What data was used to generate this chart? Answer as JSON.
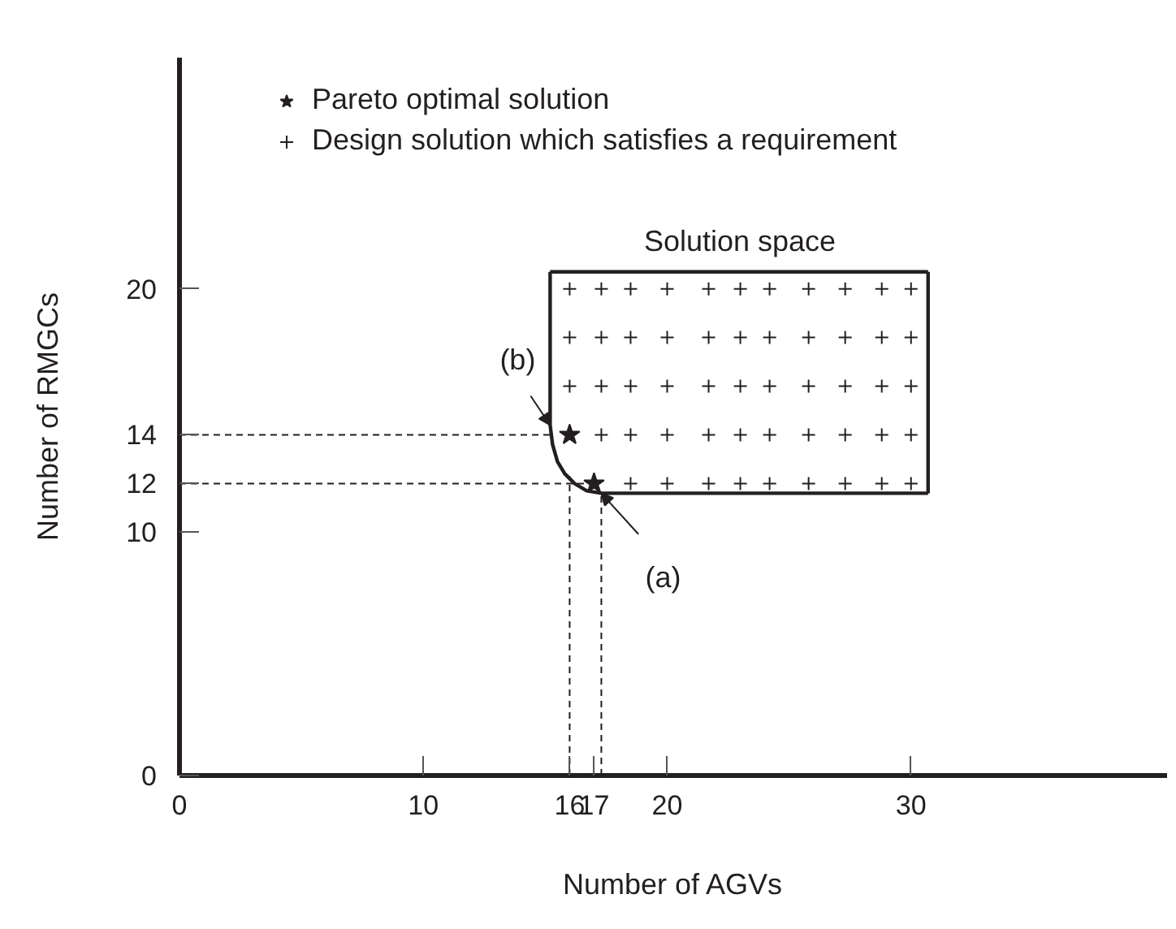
{
  "chart_data": {
    "type": "scatter",
    "xlabel": "Number of AGVs",
    "ylabel": "Number of RMGCs",
    "xlim": [
      0,
      40.5
    ],
    "ylim": [
      0,
      29.5
    ],
    "xticks": [
      0,
      10,
      16,
      17,
      20,
      30
    ],
    "yticks": [
      0,
      10,
      12,
      14,
      20
    ],
    "grid": false,
    "legend": "top left",
    "annotations": [
      "Solution space",
      {
        "text": "(a)",
        "x": 17.3,
        "y": 11.6
      },
      {
        "text": "(b)",
        "x": 15.2,
        "y": 14.4
      }
    ],
    "series": [
      {
        "name": "Pareto optimal solution",
        "marker": "star",
        "color": "#231f20",
        "x": [
          16,
          17
        ],
        "values": [
          14,
          12
        ]
      },
      {
        "name": "Design solution which satisfies a requirement",
        "marker": "cross",
        "color": "#231f20",
        "x": [
          16,
          17.3,
          18.5,
          20,
          21.7,
          23,
          24.2,
          25.8,
          27.3,
          28.8,
          30,
          16,
          17.3,
          18.5,
          20,
          21.7,
          23,
          24.2,
          25.8,
          27.3,
          28.8,
          30,
          16,
          17.3,
          18.5,
          20,
          21.7,
          23,
          24.2,
          25.8,
          27.3,
          28.8,
          30,
          17.3,
          18.5,
          20,
          21.7,
          23,
          24.2,
          25.8,
          27.3,
          28.8,
          30,
          18.5,
          20,
          21.7,
          23,
          24.2,
          25.8,
          27.3,
          28.8,
          30
        ],
        "values": [
          20,
          20,
          20,
          20,
          20,
          20,
          20,
          20,
          20,
          20,
          20,
          18,
          18,
          18,
          18,
          18,
          18,
          18,
          18,
          18,
          18,
          18,
          16,
          16,
          16,
          16,
          16,
          16,
          16,
          16,
          16,
          16,
          16,
          14,
          14,
          14,
          14,
          14,
          14,
          14,
          14,
          14,
          14,
          12,
          12,
          12,
          12,
          12,
          12,
          12,
          12,
          12
        ]
      },
      {
        "type": "line",
        "line_style": "solid",
        "color": "#231f20",
        "x": [
          15.2,
          15.2,
          15.3,
          15.5,
          15.8,
          16.2,
          16.7,
          17.3,
          30.7
        ],
        "values": [
          20.7,
          14.4,
          13.6,
          12.9,
          12.4,
          12.0,
          11.7,
          11.6,
          11.6
        ]
      },
      {
        "type": "line",
        "line_style": "solid",
        "color": "#231f20",
        "x": [
          15.2,
          30.7
        ],
        "values": [
          20.7,
          20.7
        ]
      },
      {
        "type": "line",
        "line_style": "solid",
        "color": "#231f20",
        "x": [
          30.7,
          30.7
        ],
        "values": [
          11.6,
          20.7
        ]
      },
      {
        "type": "line",
        "line_style": "dashed",
        "color": "#231f20",
        "x": [
          0,
          15.2
        ],
        "values": [
          14,
          14
        ]
      },
      {
        "type": "line",
        "line_style": "dashed",
        "color": "#231f20",
        "x": [
          0,
          16.6
        ],
        "values": [
          12,
          12
        ]
      },
      {
        "type": "line",
        "line_style": "dashed",
        "color": "#231f20",
        "x": [
          16,
          16
        ],
        "values": [
          0,
          12.3
        ]
      },
      {
        "type": "line",
        "line_style": "dashed",
        "color": "#231f20",
        "x": [
          17.3,
          17.3
        ],
        "values": [
          0,
          11.6
        ]
      }
    ]
  }
}
